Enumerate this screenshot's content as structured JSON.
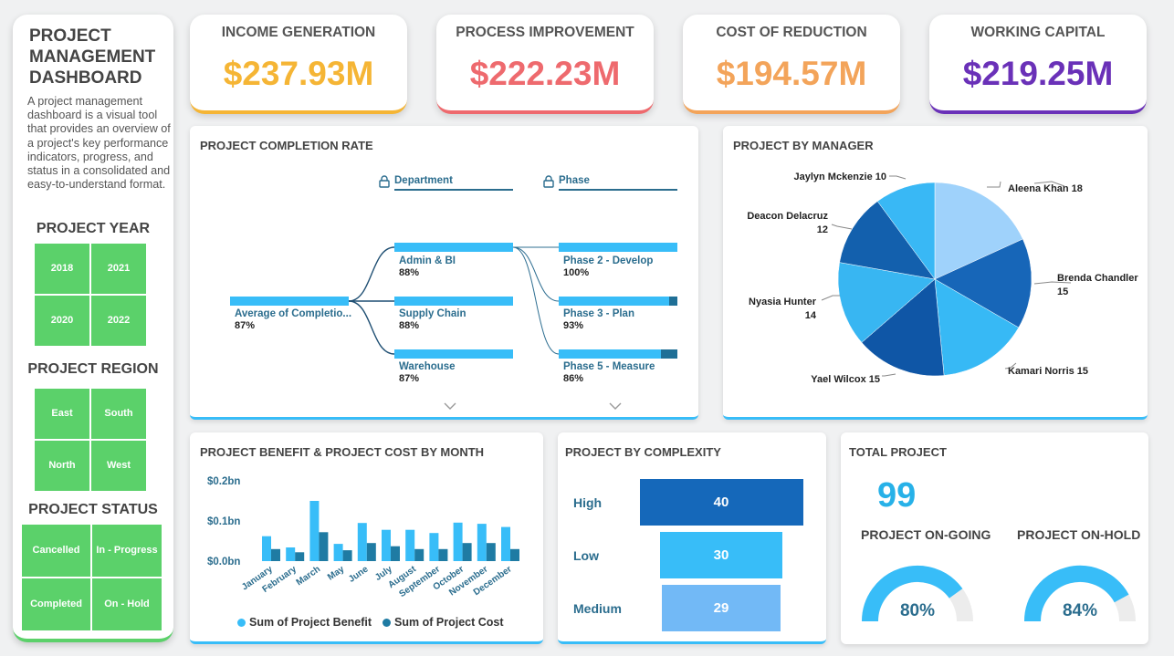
{
  "sidebar": {
    "title": "PROJECT MANAGEMENT DASHBOARD",
    "description": "A project management dashboard is a visual tool that provides an overview of a project's key performance indicators, progress, and status in a consolidated and easy-to-understand format.",
    "year_heading": "PROJECT YEAR",
    "years": [
      "2018",
      "2021",
      "2020",
      "2022"
    ],
    "region_heading": "PROJECT REGION",
    "regions": [
      "East",
      "South",
      "North",
      "West"
    ],
    "status_heading": "PROJECT STATUS",
    "statuses": [
      "Cancelled",
      "In - Progress",
      "Completed",
      "On - Hold"
    ],
    "accent": "#5bd16a"
  },
  "kpis": [
    {
      "label": "INCOME GENERATION",
      "value": "$237.93M",
      "color": "#f5b535"
    },
    {
      "label": "PROCESS IMPROVEMENT",
      "value": "$222.23M",
      "color": "#ee6a6e"
    },
    {
      "label": "COST OF REDUCTION",
      "value": "$194.57M",
      "color": "#f3a45a"
    },
    {
      "label": "WORKING CAPITAL",
      "value": "$219.25M",
      "color": "#6a31b8"
    }
  ],
  "completion": {
    "title": "PROJECT COMPLETION RATE",
    "col_department": "Department",
    "col_phase": "Phase",
    "root": {
      "label": "Average of Completio...",
      "value": "87%",
      "fraction": 1.0
    },
    "departments": [
      {
        "label": "Admin & BI",
        "value": "88%",
        "fraction": 1.0
      },
      {
        "label": "Supply Chain",
        "value": "88%",
        "fraction": 1.0
      },
      {
        "label": "Warehouse",
        "value": "87%",
        "fraction": 1.0
      }
    ],
    "phases": [
      {
        "label": "Phase 2 - Develop",
        "value": "100%",
        "fraction": 1.0
      },
      {
        "label": "Phase 3 - Plan",
        "value": "93%",
        "fraction": 0.93
      },
      {
        "label": "Phase 5 - Measure",
        "value": "86%",
        "fraction": 0.86
      }
    ]
  },
  "manager": {
    "title": "PROJECT BY MANAGER",
    "slices": [
      {
        "name": "Aleena Khan",
        "value": 18,
        "color": "#9fd2fb",
        "label": "Aleena Khan 18"
      },
      {
        "name": "Brenda Chandler",
        "value": 15,
        "color": "#1766b8",
        "label_1": "Brenda Chandler",
        "label_2": "15"
      },
      {
        "name": "Kamari Norris",
        "value": 15,
        "color": "#37b9f5",
        "label": "Kamari Norris 15"
      },
      {
        "name": "Yael Wilcox",
        "value": 15,
        "color": "#0f56a6",
        "label": "Yael Wilcox 15"
      },
      {
        "name": "Nyasia Hunter",
        "value": 14,
        "color": "#38b6f2",
        "label_1": "Nyasia Hunter",
        "label_2": "14"
      },
      {
        "name": "Deacon Delacruz",
        "value": 12,
        "color": "#1360ad",
        "label_1": "Deacon Delacruz",
        "label_2": "12"
      },
      {
        "name": "Jaylyn Mckenzie",
        "value": 10,
        "color": "#39b8f5",
        "label": "Jaylyn Mckenzie 10"
      }
    ]
  },
  "monthly": {
    "title": "PROJECT BENEFIT & PROJECT COST BY MONTH",
    "legend_benefit": "Sum of  Project Benefit",
    "legend_cost": "Sum of  Project Cost"
  },
  "chart_data": {
    "type": "bar",
    "categories": [
      "January",
      "February",
      "March",
      "May",
      "June",
      "July",
      "August",
      "September",
      "October",
      "November",
      "December"
    ],
    "series": [
      {
        "name": "Sum of  Project Benefit",
        "color": "#38bdf8",
        "values": [
          0.062,
          0.034,
          0.15,
          0.043,
          0.095,
          0.078,
          0.078,
          0.07,
          0.096,
          0.093,
          0.085
        ]
      },
      {
        "name": "Sum of  Project Cost",
        "color": "#1f7ba3",
        "values": [
          0.03,
          0.022,
          0.072,
          0.027,
          0.045,
          0.037,
          0.03,
          0.03,
          0.045,
          0.045,
          0.03
        ]
      }
    ],
    "yticks": [
      "$0.0bn",
      "$0.1bn",
      "$0.2bn"
    ],
    "ylim": [
      0,
      0.2
    ],
    "legend_position": "bottom"
  },
  "complexity": {
    "title": "PROJECT BY COMPLEXITY",
    "items": [
      {
        "label": "High",
        "value": "40",
        "count": 40,
        "color": "#1568ba"
      },
      {
        "label": "Low",
        "value": "30",
        "count": 30,
        "color": "#38bdf8"
      },
      {
        "label": "Medium",
        "value": "29",
        "count": 29,
        "color": "#72b9f6"
      }
    ]
  },
  "total": {
    "title": "TOTAL PROJECT",
    "value": "99",
    "ongoing_label": "PROJECT ON-GOING",
    "ongoing_value": "80%",
    "ongoing_fraction": 0.8,
    "onhold_label": "PROJECT ON-HOLD",
    "onhold_value": "84%",
    "onhold_fraction": 0.84,
    "gauge_color": "#38bdf8",
    "gauge_track": "#ececec"
  }
}
